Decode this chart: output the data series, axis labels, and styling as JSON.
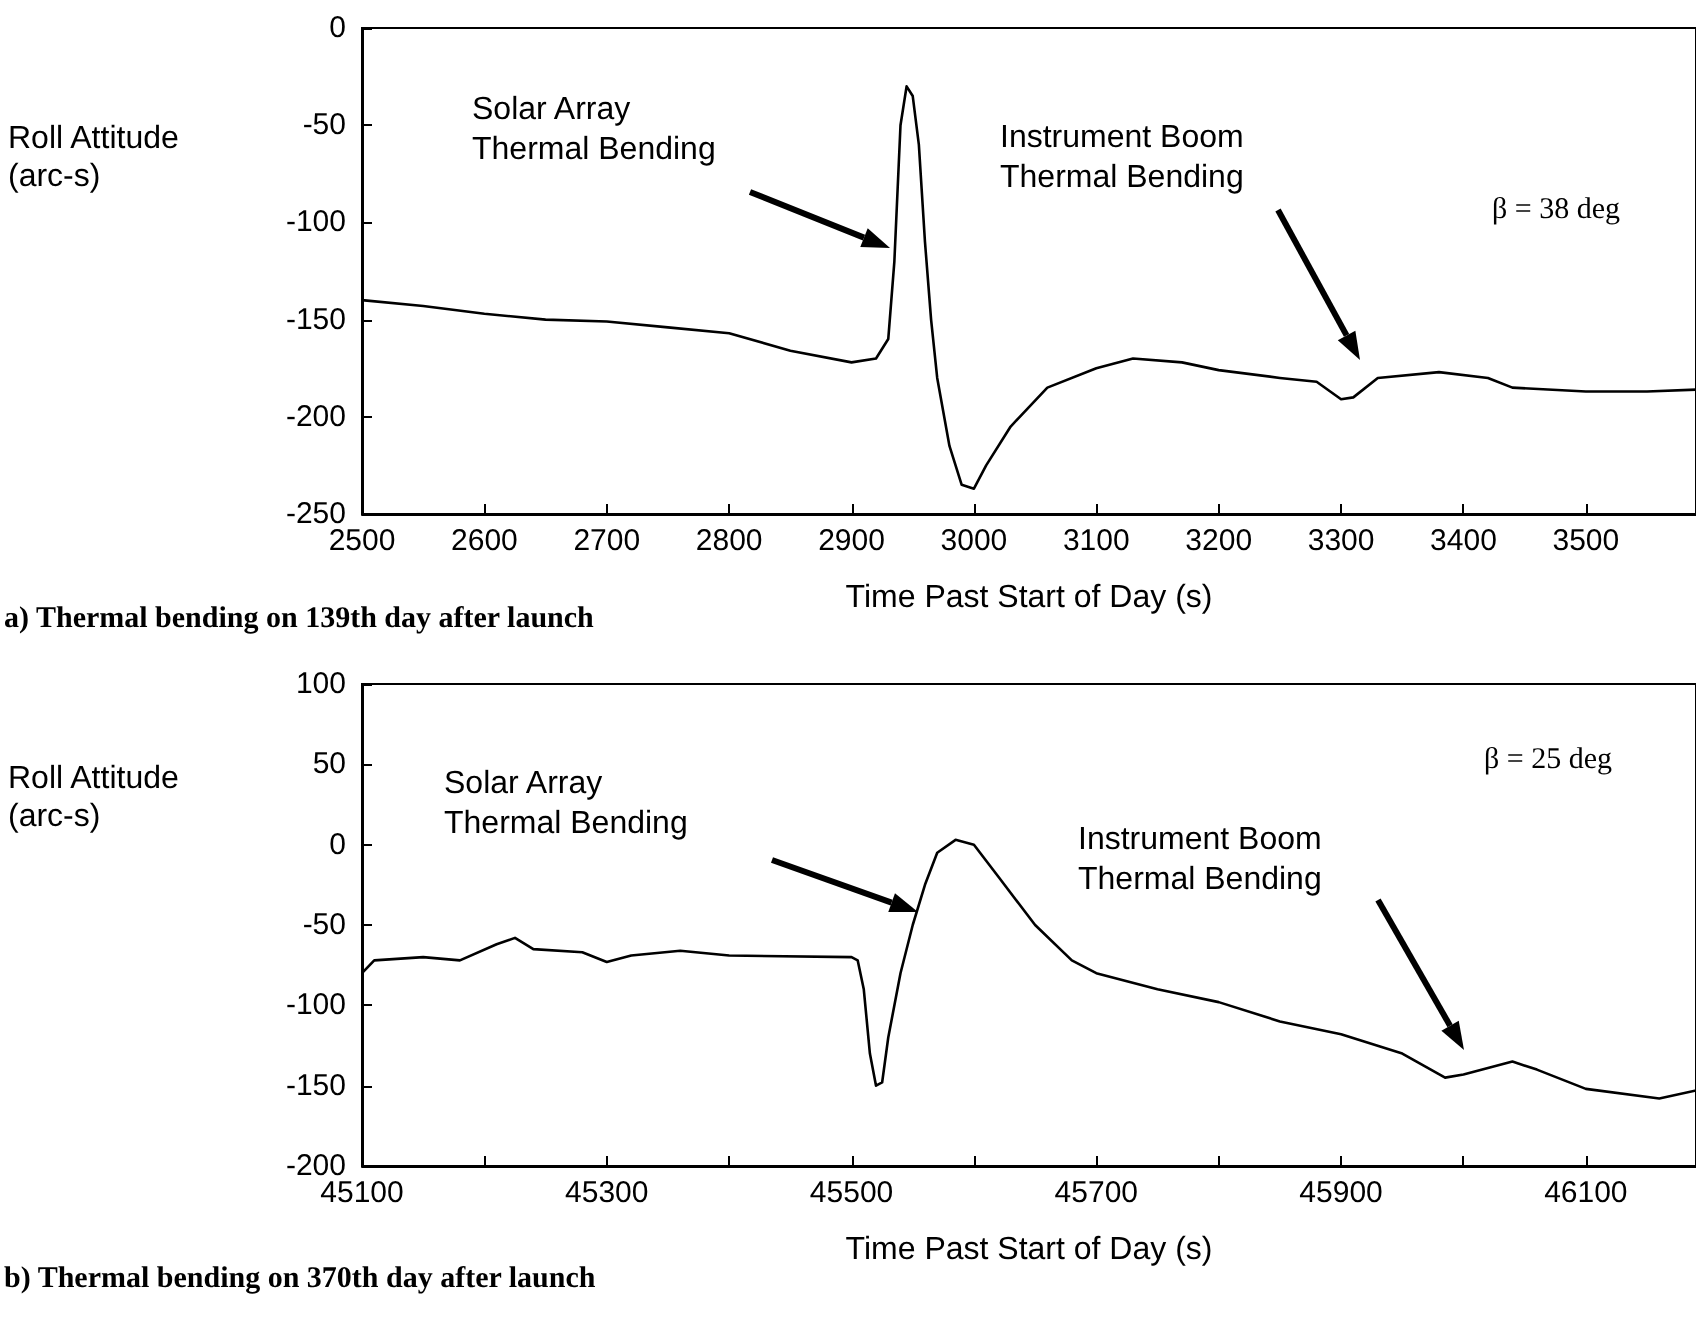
{
  "chart_data": [
    {
      "type": "line",
      "title": "a) Thermal bending on 139th day after launch",
      "xlabel": "Time Past Start of Day (s)",
      "ylabel": "Roll Attitude\n(arc-s)",
      "x": [
        2500,
        2550,
        2600,
        2650,
        2700,
        2750,
        2800,
        2850,
        2900,
        2920,
        2930,
        2935,
        2940,
        2945,
        2950,
        2955,
        2960,
        2965,
        2970,
        2980,
        2990,
        3000,
        3010,
        3030,
        3060,
        3100,
        3130,
        3170,
        3200,
        3250,
        3280,
        3300,
        3310,
        3330,
        3380,
        3420,
        3440,
        3500,
        3550,
        3590
      ],
      "series": [
        {
          "color": "#000000",
          "values": [
            -140,
            -143,
            -147,
            -150,
            -151,
            -154,
            -157,
            -166,
            -172,
            -170,
            -160,
            -120,
            -50,
            -30,
            -35,
            -60,
            -110,
            -150,
            -180,
            -215,
            -235,
            -237,
            -225,
            -205,
            -185,
            -175,
            -170,
            -172,
            -176,
            -180,
            -182,
            -191,
            -190,
            -180,
            -177,
            -180,
            -185,
            -187,
            -187,
            -186
          ]
        }
      ],
      "xlim": [
        2500,
        3590
      ],
      "xticks": [
        2500,
        2600,
        2700,
        2800,
        2900,
        3000,
        3100,
        3200,
        3300,
        3400,
        3500
      ],
      "ylim": [
        -250,
        0
      ],
      "yticks": [
        -250,
        -200,
        -150,
        -100,
        -50,
        0
      ],
      "annotations": [
        "Solar Array\nThermal Bending",
        "Instrument Boom\nThermal Bending",
        "β = 38 deg"
      ],
      "grid": false,
      "marker": "none",
      "line_style": "solid"
    },
    {
      "type": "line",
      "title": "b) Thermal bending on 370th day after launch",
      "xlabel": "Time Past Start of Day (s)",
      "ylabel": "Roll Attitude\n(arc-s)",
      "x": [
        45100,
        45110,
        45150,
        45180,
        45210,
        45225,
        45240,
        45280,
        45300,
        45320,
        45360,
        45400,
        45500,
        45505,
        45510,
        45515,
        45520,
        45525,
        45530,
        45540,
        45550,
        45560,
        45570,
        45585,
        45600,
        45620,
        45650,
        45680,
        45700,
        45750,
        45800,
        45850,
        45900,
        45950,
        45985,
        46000,
        46040,
        46060,
        46100,
        46160,
        46190
      ],
      "series": [
        {
          "color": "#000000",
          "values": [
            -80,
            -72,
            -70,
            -72,
            -62,
            -58,
            -65,
            -67,
            -73,
            -69,
            -66,
            -69,
            -70,
            -72,
            -90,
            -130,
            -150,
            -148,
            -120,
            -80,
            -50,
            -25,
            -5,
            3,
            0,
            -20,
            -50,
            -72,
            -80,
            -90,
            -98,
            -110,
            -118,
            -130,
            -145,
            -143,
            -135,
            -140,
            -152,
            -158,
            -153
          ]
        }
      ],
      "xlim": [
        45100,
        46190
      ],
      "xticks": [
        45100,
        {
          "value": 45200,
          "label": null
        },
        45300,
        {
          "value": 45400,
          "label": null
        },
        45500,
        {
          "value": 45600,
          "label": null
        },
        45700,
        {
          "value": 45800,
          "label": null
        },
        45900,
        {
          "value": 46000,
          "label": null
        },
        46100
      ],
      "ylim": [
        -200,
        100
      ],
      "yticks": [
        -200,
        -150,
        -100,
        -50,
        0,
        50,
        100
      ],
      "annotations": [
        "Solar Array\nThermal Bending",
        "Instrument Boom\nThermal Bending",
        "β = 25 deg"
      ],
      "grid": false,
      "marker": "none",
      "line_style": "solid"
    }
  ]
}
